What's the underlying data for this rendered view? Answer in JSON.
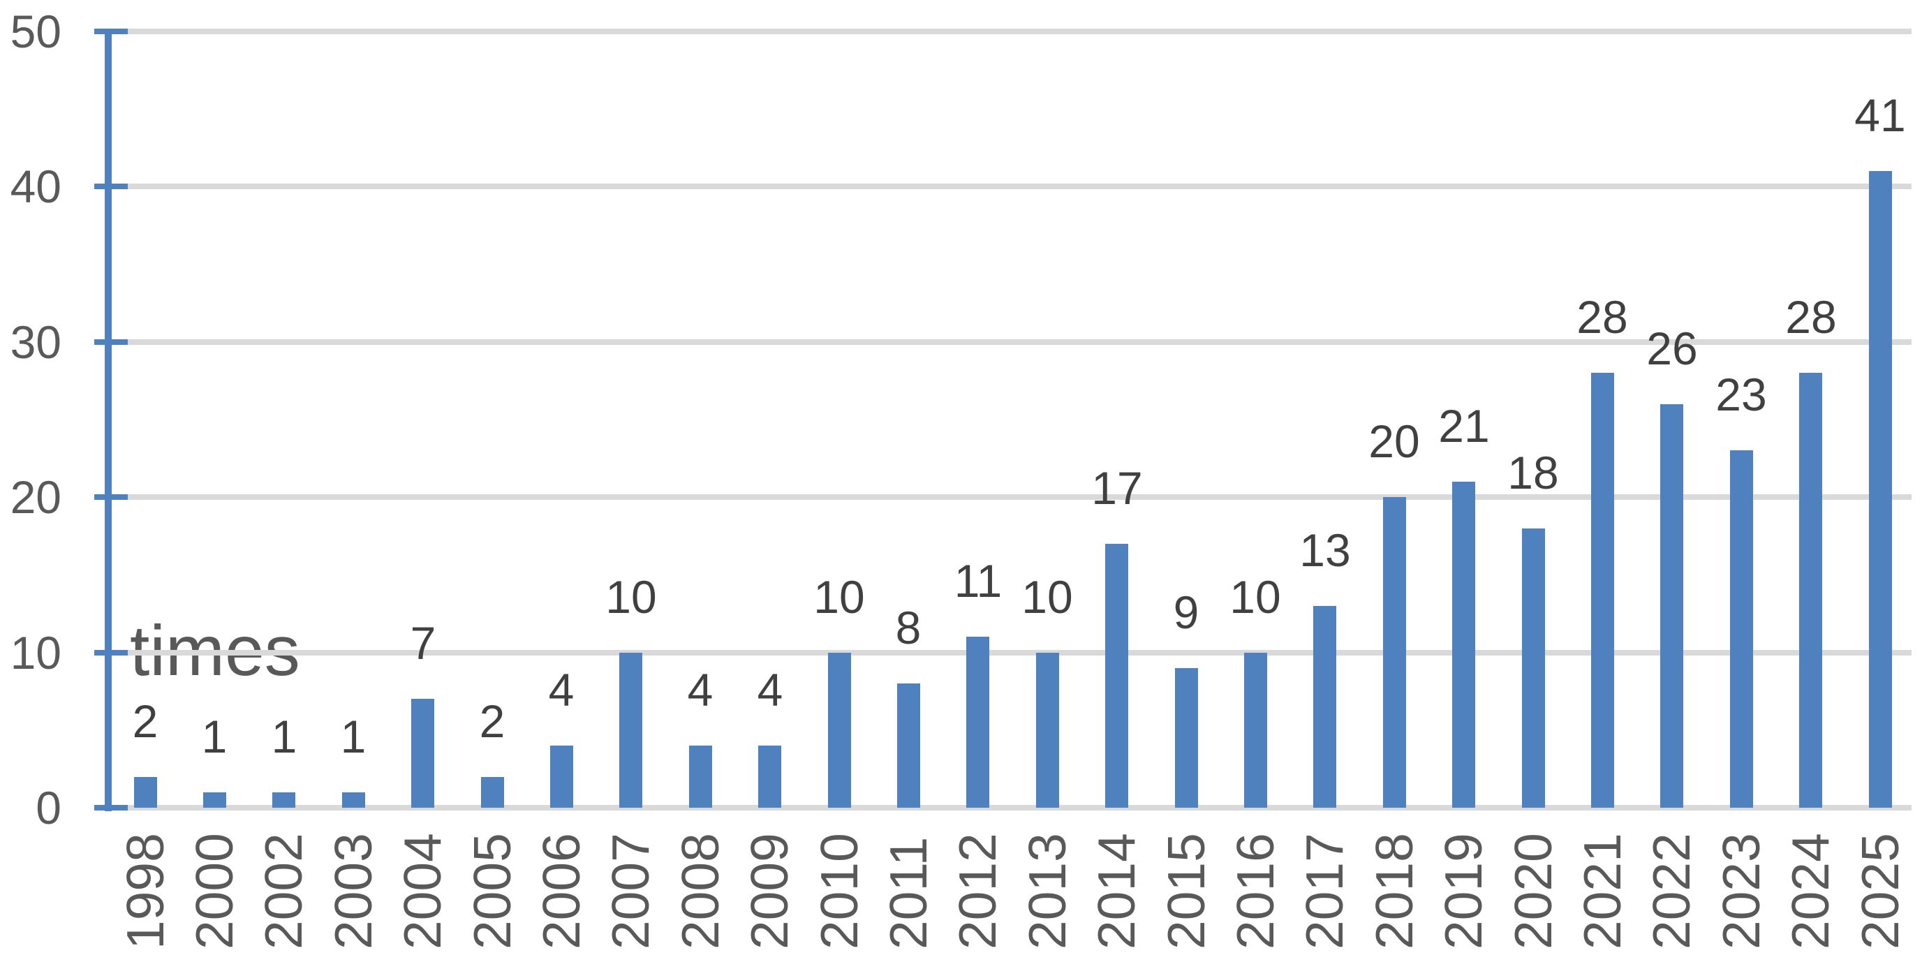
{
  "chart_data": {
    "type": "bar",
    "title": "",
    "xlabel": "",
    "ylabel": "",
    "unit_label": "times",
    "categories": [
      "1998",
      "2000",
      "2002",
      "2003",
      "2004",
      "2005",
      "2006",
      "2007",
      "2008",
      "2009",
      "2010",
      "2011",
      "2012",
      "2013",
      "2014",
      "2015",
      "2016",
      "2017",
      "2018",
      "2019",
      "2020",
      "2021",
      "2022",
      "2023",
      "2024",
      "2025"
    ],
    "values": [
      2,
      1,
      1,
      1,
      7,
      2,
      4,
      10,
      4,
      4,
      10,
      8,
      11,
      10,
      17,
      9,
      10,
      13,
      20,
      21,
      18,
      28,
      26,
      23,
      28,
      41
    ],
    "ylim": [
      0,
      50
    ],
    "yticks": [
      0,
      10,
      20,
      30,
      40,
      50
    ],
    "grid": true,
    "legend": "none",
    "data_labels": true,
    "x_tick_rotation_deg": 90,
    "colors": {
      "bar": "#4E81BD",
      "axis": "#4E81BD",
      "gridline": "#D9D9D9",
      "tick_label": "#595959",
      "x_label": "#595959",
      "data_label": "#404040",
      "background": "#FFFFFF"
    }
  }
}
